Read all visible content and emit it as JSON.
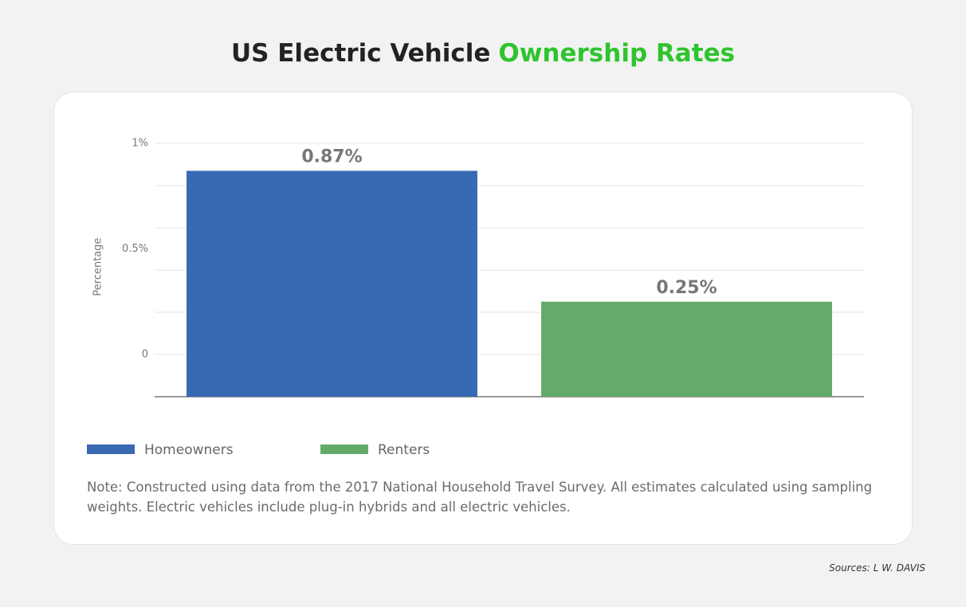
{
  "chart_data": {
    "type": "bar",
    "title": "US Electric Vehicle",
    "title_highlight": "Ownership Rates",
    "y_label": "Percentage",
    "categories": [
      "Homeowners",
      "Renters"
    ],
    "values": [
      0.87,
      0.25
    ],
    "value_labels": [
      "0.87%",
      "0.25%"
    ],
    "colors": [
      "#3869b3",
      "#64aa6a"
    ],
    "ylim": [
      -0.2,
      1
    ],
    "yticks": [
      {
        "value": 1,
        "label": "1%"
      },
      {
        "value": 0.5,
        "label": "0.5%"
      },
      0
    ],
    "grid_lines": [
      1,
      0.8,
      0.6,
      0.4,
      0.2,
      0
    ],
    "grid": true,
    "note": "Note: Constructed using data from the 2017 National Household Travel Survey. All estimates calculated using sampling weights. Electric vehicles include plug-in hybrids and all electric vehicles.",
    "source": "Sources: L W. DAVIS"
  }
}
